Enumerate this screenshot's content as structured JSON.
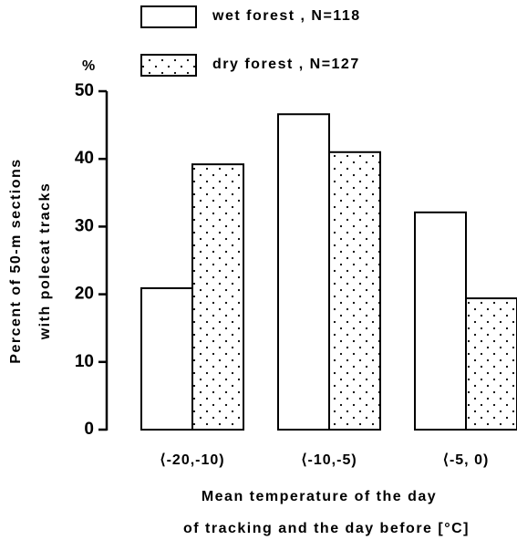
{
  "chart_data": {
    "type": "bar",
    "unit": "%",
    "ylabel": [
      "Percent of 50-m sections",
      "with polecat tracks"
    ],
    "xlabel": [
      "Mean temperature of the day",
      "of tracking and the day before [°C]"
    ],
    "categories": [
      "⟨-20,-10)",
      "⟨-10,-5)",
      "⟨-5, 0)"
    ],
    "series": [
      {
        "name": "wet forest , N=118",
        "color": "#000000",
        "pattern": "none",
        "values": [
          20.9,
          46.6,
          32.1
        ]
      },
      {
        "name": "dry forest , N=127",
        "color": "#000000",
        "pattern": "dots",
        "values": [
          39.2,
          41.0,
          19.4
        ]
      }
    ],
    "ylim": [
      0,
      50
    ],
    "yticks": [
      0,
      10,
      20,
      30,
      40,
      50
    ],
    "grid": false
  }
}
